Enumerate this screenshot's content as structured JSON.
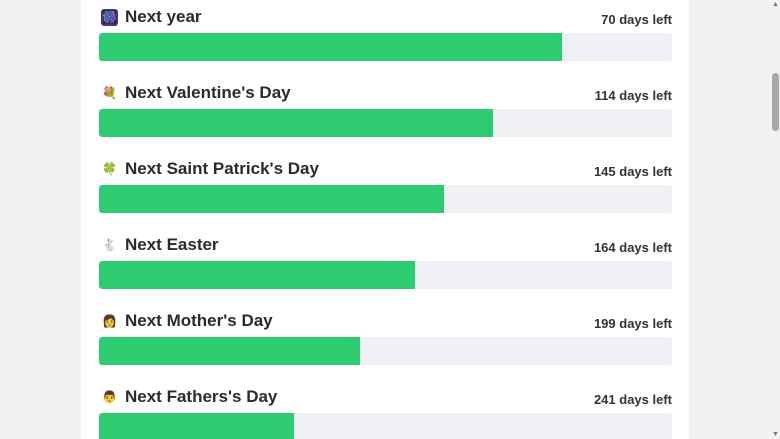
{
  "accent_color": "#2ecc71",
  "track_color": "#eff0f4",
  "countdowns": [
    {
      "icon": "fireworks-icon",
      "glyph": "🎆",
      "title": "Next year",
      "days_left": "70 days left",
      "progress": 0.808
    },
    {
      "icon": "heart-bouquet-icon",
      "glyph": "💐",
      "title": "Next Valentine's Day",
      "days_left": "114 days left",
      "progress": 0.687
    },
    {
      "icon": "four-leaf-clover-icon",
      "glyph": "🍀",
      "title": "Next Saint Patrick's Day",
      "days_left": "145 days left",
      "progress": 0.602
    },
    {
      "icon": "rabbit-icon",
      "glyph": "🐇",
      "title": "Next Easter",
      "days_left": "164 days left",
      "progress": 0.551
    },
    {
      "icon": "mother-icon",
      "glyph": "👩",
      "title": "Next Mother's Day",
      "days_left": "199 days left",
      "progress": 0.455
    },
    {
      "icon": "father-icon",
      "glyph": "👨",
      "title": "Next Fathers's Day",
      "days_left": "241 days left",
      "progress": 0.34
    }
  ]
}
